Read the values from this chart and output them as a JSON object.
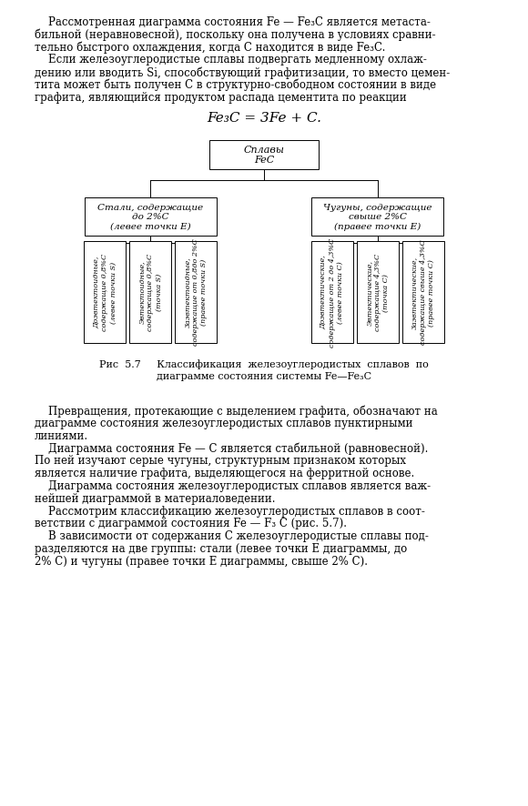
{
  "background_color": "#ffffff",
  "page_width": 5.8,
  "page_height": 8.87,
  "top_text": [
    "    Рассмотренная диаграмма состояния Fe — Fe₃C является метаста-",
    "бильной (неравновесной), поскольку она получена в условиях сравни-",
    "тельно быстрого охлаждения, когда С находится в виде Fe₃C.",
    "    Если железоуглеродистые сплавы подвергать медленному охлаж-",
    "дению или вводить Si, способствующий графитизации, то вместо цемен-",
    "тита может быть получен С в структурно-свободном состоянии в виде",
    "графита, являющийся продуктом распада цементита по реакции"
  ],
  "formula": "Fe₃C = 3Fe + C.",
  "root_box": "Сплавы\nFeC",
  "left_branch_text": "Стали, содержащие\nдо 2%С\n(левее точки E)",
  "right_branch_text": "Чугуны, содержащие\nсвыше 2%С\n(правее точки E)",
  "steel_leaves": [
    "Доэвтектоидные,\nсодержащие 0,8%С\n(левее точки S)",
    "Эвтектоидные,\nсодержащие 0,8%С\n(точка S)",
    "Заэвтектоидные,\nсодержащие от 0,8до 2%С\n(правее точки S)"
  ],
  "iron_leaves": [
    "Доэвтектические,\nсодержащие от 2 до 4,3%С\n(левее точки C)",
    "Эвтектические,\nсодержащие 4,3%С\n(точка C)",
    "Заэвтектические,\nсодержащие свыше 4,3%С\n(правее точки C)"
  ],
  "caption_line1": "Рис  5.7     Классификация  железоуглеродистых  сплавов  по",
  "caption_line2": "диаграмме состояния системы Fe—Fe₃C",
  "bottom_text": [
    {
      "text": "    Превращения, протекающие с выделением графита, обозначают на",
      "indent": true
    },
    {
      "text": "диаграмме состояния железоуглеродистых сплавов пунктирными",
      "indent": false
    },
    {
      "text": "линиями.",
      "indent": false
    },
    {
      "text": "    Диаграмма состояния Fe — С является стабильной (равновесной).",
      "indent": true
    },
    {
      "text": "По ней изучают серые чугуны, структурным признаком которых",
      "indent": false
    },
    {
      "text": "является наличие графита, выделяющегося на ферритной основе.",
      "indent": false
    },
    {
      "text": "    Диаграмма состояния железоуглеродистых сплавов является важ-",
      "indent": true
    },
    {
      "text": "нейшей диаграммой в материаловедении.",
      "indent": false
    },
    {
      "text": "    Рассмотрим классификацию железоуглеродистых сплавов в соот-",
      "indent": true
    },
    {
      "text": "ветствии с диаграммой состояния Fe — F₃ C (рис. 5.7).",
      "indent": false
    },
    {
      "text": "    В зависимости от содержания С железоуглеродистые сплавы под-",
      "indent": true
    },
    {
      "text": "разделяются на две группы: стали (левее точки E диаграммы, до",
      "indent": false
    },
    {
      "text": "2% С) и чугуны (правее точки E диаграммы, свыше 2% С).",
      "indent": false
    }
  ],
  "font_size_body": 8.5,
  "font_size_formula": 11,
  "font_size_box_root": 8.0,
  "font_size_box_mid": 7.5,
  "font_size_leaf": 5.8,
  "font_size_caption": 8.0
}
